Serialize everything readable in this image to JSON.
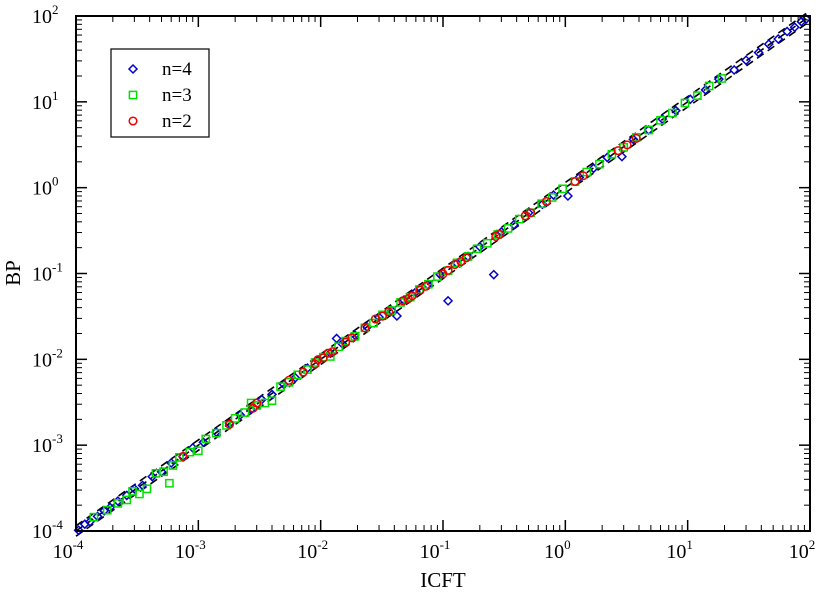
{
  "chart_data": {
    "type": "scatter",
    "xlabel": "ICFT",
    "ylabel": "BP",
    "xscale": "log",
    "yscale": "log",
    "xlim": [
      0.0001,
      100
    ],
    "ylim": [
      0.0001,
      100
    ],
    "grid": false,
    "legend_position": "top-left",
    "tick_labels": [
      {
        "base": "10",
        "exp": "-4",
        "value": 0.0001
      },
      {
        "base": "10",
        "exp": "-3",
        "value": 0.001
      },
      {
        "base": "10",
        "exp": "-2",
        "value": 0.01
      },
      {
        "base": "10",
        "exp": "-1",
        "value": 0.1
      },
      {
        "base": "10",
        "exp": "0",
        "value": 1
      },
      {
        "base": "10",
        "exp": "1",
        "value": 10
      },
      {
        "base": "10",
        "exp": "2",
        "value": 100
      }
    ],
    "reference_lines": {
      "style": "dashed",
      "color": "#000000",
      "factors": [
        0.87,
        1.0,
        1.15
      ]
    },
    "series": [
      {
        "name": "n=4",
        "marker": "diamond",
        "color": "#0000cc",
        "points": [
          [
            0.000105,
            0.000102
          ],
          [
            0.000118,
            0.00012
          ],
          [
            0.00013,
            0.000128
          ],
          [
            0.00015,
            0.000148
          ],
          [
            0.00017,
            0.000172
          ],
          [
            0.00019,
            0.000188
          ],
          [
            0.00022,
            0.000223
          ],
          [
            0.00026,
            0.00026
          ],
          [
            0.0003,
            0.00031
          ],
          [
            0.00035,
            0.00034
          ],
          [
            0.00042,
            0.00043
          ],
          [
            0.0005,
            0.00049
          ],
          [
            0.0006,
            0.00062
          ],
          [
            0.00075,
            0.00074
          ],
          [
            0.0009,
            0.00093
          ],
          [
            0.0011,
            0.00108
          ],
          [
            0.0014,
            0.00142
          ],
          [
            0.0018,
            0.0018
          ],
          [
            0.0022,
            0.00225
          ],
          [
            0.0027,
            0.0026
          ],
          [
            0.0033,
            0.0034
          ],
          [
            0.004,
            0.0039
          ],
          [
            0.005,
            0.0051
          ],
          [
            0.0062,
            0.0061
          ],
          [
            0.0078,
            0.0079
          ],
          [
            0.0095,
            0.0097
          ],
          [
            0.012,
            0.0118
          ],
          [
            0.0135,
            0.0175
          ],
          [
            0.015,
            0.0152
          ],
          [
            0.019,
            0.0192
          ],
          [
            0.024,
            0.0238
          ],
          [
            0.03,
            0.031
          ],
          [
            0.038,
            0.037
          ],
          [
            0.042,
            0.032
          ],
          [
            0.048,
            0.049
          ],
          [
            0.06,
            0.061
          ],
          [
            0.075,
            0.074
          ],
          [
            0.095,
            0.097
          ],
          [
            0.11,
            0.048
          ],
          [
            0.13,
            0.132
          ],
          [
            0.16,
            0.158
          ],
          [
            0.2,
            0.205
          ],
          [
            0.26,
            0.097
          ],
          [
            0.3,
            0.305
          ],
          [
            0.38,
            0.37
          ],
          [
            0.5,
            0.51
          ],
          [
            0.65,
            0.64
          ],
          [
            0.8,
            0.82
          ],
          [
            1.05,
            0.8
          ],
          [
            1.3,
            1.32
          ],
          [
            1.7,
            1.68
          ],
          [
            2.2,
            2.25
          ],
          [
            2.9,
            2.3
          ],
          [
            3.6,
            3.65
          ],
          [
            4.8,
            4.7
          ],
          [
            6.2,
            6.3
          ],
          [
            8.0,
            7.9
          ],
          [
            10.5,
            10.7
          ],
          [
            14.0,
            13.8
          ],
          [
            18.0,
            18.4
          ],
          [
            24.0,
            23.5
          ],
          [
            30.0,
            30.5
          ],
          [
            38.0,
            37.5
          ],
          [
            46.0,
            47.0
          ],
          [
            55.0,
            54.0
          ],
          [
            65.0,
            66.0
          ],
          [
            75.0,
            74.0
          ],
          [
            85.0,
            86.0
          ],
          [
            93.0,
            92.0
          ]
        ]
      },
      {
        "name": "n=3",
        "marker": "square",
        "color": "#00e000",
        "points": [
          [
            0.00014,
            0.000145
          ],
          [
            0.00018,
            0.000175
          ],
          [
            0.00022,
            0.00021
          ],
          [
            0.00026,
            0.00023
          ],
          [
            0.00029,
            0.00029
          ],
          [
            0.00033,
            0.00027
          ],
          [
            0.00038,
            0.00031
          ],
          [
            0.00045,
            0.00047
          ],
          [
            0.00052,
            0.00049
          ],
          [
            0.00058,
            0.00036
          ],
          [
            0.00062,
            0.00058
          ],
          [
            0.0007,
            0.00072
          ],
          [
            0.00085,
            0.00083
          ],
          [
            0.001,
            0.00086
          ],
          [
            0.00115,
            0.00118
          ],
          [
            0.0014,
            0.00138
          ],
          [
            0.0017,
            0.0017
          ],
          [
            0.002,
            0.00205
          ],
          [
            0.0024,
            0.0024
          ],
          [
            0.0027,
            0.0031
          ],
          [
            0.003,
            0.0029
          ],
          [
            0.0035,
            0.0031
          ],
          [
            0.004,
            0.0033
          ],
          [
            0.0047,
            0.0048
          ],
          [
            0.0055,
            0.0054
          ],
          [
            0.0065,
            0.0066
          ],
          [
            0.0078,
            0.0076
          ],
          [
            0.009,
            0.0092
          ],
          [
            0.0105,
            0.0106
          ],
          [
            0.012,
            0.0108
          ],
          [
            0.014,
            0.014
          ],
          [
            0.016,
            0.0163
          ],
          [
            0.019,
            0.0185
          ],
          [
            0.023,
            0.0233
          ],
          [
            0.027,
            0.0265
          ],
          [
            0.032,
            0.033
          ],
          [
            0.038,
            0.037
          ],
          [
            0.045,
            0.046
          ],
          [
            0.054,
            0.053
          ],
          [
            0.064,
            0.065
          ],
          [
            0.076,
            0.075
          ],
          [
            0.09,
            0.092
          ],
          [
            0.11,
            0.108
          ],
          [
            0.13,
            0.133
          ],
          [
            0.16,
            0.158
          ],
          [
            0.19,
            0.194
          ],
          [
            0.23,
            0.225
          ],
          [
            0.28,
            0.285
          ],
          [
            0.34,
            0.335
          ],
          [
            0.42,
            0.43
          ],
          [
            0.52,
            0.51
          ],
          [
            0.64,
            0.65
          ],
          [
            0.78,
            0.77
          ],
          [
            0.95,
            0.97
          ],
          [
            1.2,
            1.18
          ],
          [
            1.5,
            1.52
          ],
          [
            1.9,
            1.88
          ],
          [
            2.4,
            2.45
          ],
          [
            3.0,
            2.95
          ],
          [
            3.8,
            3.85
          ],
          [
            4.8,
            4.7
          ],
          [
            6.0,
            6.1
          ],
          [
            7.5,
            7.4
          ],
          [
            9.5,
            9.7
          ],
          [
            12.0,
            11.8
          ],
          [
            15.0,
            15.3
          ],
          [
            19.0,
            18.7
          ]
        ]
      },
      {
        "name": "n=2",
        "marker": "circle",
        "color": "#ee0000",
        "points": [
          [
            0.00075,
            0.00074
          ],
          [
            0.0018,
            0.00175
          ],
          [
            0.0028,
            0.0027
          ],
          [
            0.003,
            0.0031
          ],
          [
            0.0055,
            0.0057
          ],
          [
            0.0072,
            0.0071
          ],
          [
            0.009,
            0.0088
          ],
          [
            0.0095,
            0.0099
          ],
          [
            0.0105,
            0.0104
          ],
          [
            0.0115,
            0.0118
          ],
          [
            0.0125,
            0.0123
          ],
          [
            0.016,
            0.0158
          ],
          [
            0.018,
            0.0178
          ],
          [
            0.023,
            0.0232
          ],
          [
            0.028,
            0.0295
          ],
          [
            0.032,
            0.0318
          ],
          [
            0.036,
            0.0358
          ],
          [
            0.047,
            0.048
          ],
          [
            0.052,
            0.051
          ],
          [
            0.056,
            0.055
          ],
          [
            0.065,
            0.064
          ],
          [
            0.072,
            0.071
          ],
          [
            0.1,
            0.099
          ],
          [
            0.11,
            0.109
          ],
          [
            0.125,
            0.127
          ],
          [
            0.14,
            0.138
          ],
          [
            0.155,
            0.152
          ],
          [
            0.27,
            0.27
          ],
          [
            0.29,
            0.285
          ],
          [
            0.47,
            0.47
          ],
          [
            0.52,
            0.51
          ],
          [
            0.7,
            0.69
          ],
          [
            1.2,
            1.18
          ],
          [
            1.4,
            1.38
          ],
          [
            2.7,
            2.7
          ],
          [
            3.2,
            3.15
          ],
          [
            3.8,
            3.75
          ]
        ]
      }
    ]
  }
}
